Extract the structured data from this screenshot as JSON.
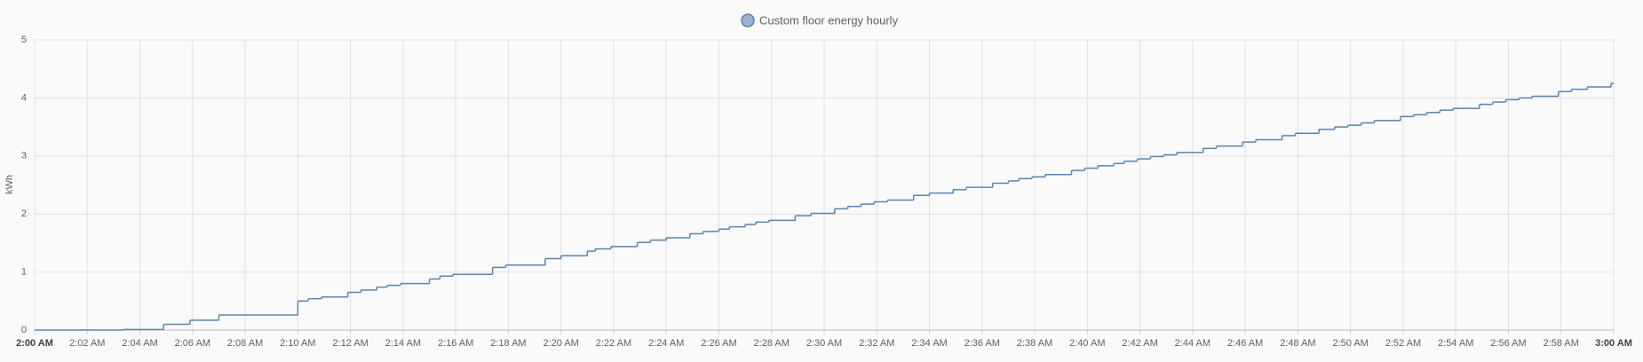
{
  "chart_data": {
    "type": "line",
    "step": "after",
    "legend_label_position": "top",
    "y_label": "kWh",
    "grid": true,
    "xlim": [
      0,
      60
    ],
    "xticks": [
      {
        "value": 0,
        "label": "2:00 AM"
      },
      {
        "value": 2,
        "label": "2:02 AM"
      },
      {
        "value": 4,
        "label": "2:04 AM"
      },
      {
        "value": 6,
        "label": "2:06 AM"
      },
      {
        "value": 8,
        "label": "2:08 AM"
      },
      {
        "value": 10,
        "label": "2:10 AM"
      },
      {
        "value": 12,
        "label": "2:12 AM"
      },
      {
        "value": 14,
        "label": "2:14 AM"
      },
      {
        "value": 16,
        "label": "2:16 AM"
      },
      {
        "value": 18,
        "label": "2:18 AM"
      },
      {
        "value": 20,
        "label": "2:20 AM"
      },
      {
        "value": 22,
        "label": "2:22 AM"
      },
      {
        "value": 24,
        "label": "2:24 AM"
      },
      {
        "value": 26,
        "label": "2:26 AM"
      },
      {
        "value": 28,
        "label": "2:28 AM"
      },
      {
        "value": 30,
        "label": "2:30 AM"
      },
      {
        "value": 32,
        "label": "2:32 AM"
      },
      {
        "value": 34,
        "label": "2:34 AM"
      },
      {
        "value": 36,
        "label": "2:36 AM"
      },
      {
        "value": 38,
        "label": "2:38 AM"
      },
      {
        "value": 40,
        "label": "2:40 AM"
      },
      {
        "value": 42,
        "label": "2:42 AM"
      },
      {
        "value": 44,
        "label": "2:44 AM"
      },
      {
        "value": 46,
        "label": "2:46 AM"
      },
      {
        "value": 48,
        "label": "2:48 AM"
      },
      {
        "value": 50,
        "label": "2:50 AM"
      },
      {
        "value": 52,
        "label": "2:52 AM"
      },
      {
        "value": 54,
        "label": "2:54 AM"
      },
      {
        "value": 56,
        "label": "2:56 AM"
      },
      {
        "value": 58,
        "label": "2:58 AM"
      },
      {
        "value": 60,
        "label": "3:00 AM"
      }
    ],
    "ylim": [
      0,
      5
    ],
    "yticks": [
      0,
      1,
      2,
      3,
      4,
      5
    ],
    "x": [
      0,
      3.4,
      4.9,
      5.9,
      7.0,
      10.0,
      10.4,
      10.9,
      11.9,
      12.4,
      13.0,
      13.4,
      13.9,
      15.0,
      15.4,
      15.9,
      17.4,
      17.9,
      19.4,
      20.0,
      21.0,
      21.3,
      21.9,
      22.9,
      23.4,
      24.0,
      24.9,
      25.4,
      26.0,
      26.4,
      27.0,
      27.4,
      27.9,
      28.9,
      29.5,
      30.4,
      30.9,
      31.4,
      31.9,
      32.4,
      33.4,
      34.0,
      34.9,
      35.4,
      36.4,
      37.0,
      37.4,
      37.9,
      38.4,
      39.4,
      39.9,
      40.4,
      41.0,
      41.4,
      41.9,
      42.4,
      42.9,
      43.4,
      44.4,
      44.9,
      45.9,
      46.4,
      47.4,
      47.9,
      48.8,
      49.4,
      49.9,
      50.4,
      50.9,
      51.9,
      52.4,
      52.9,
      53.4,
      53.9,
      54.9,
      55.4,
      55.9,
      56.4,
      56.9,
      57.9,
      58.4,
      59.0,
      59.9,
      60
    ],
    "series": [
      {
        "name": "Custom floor energy hourly",
        "color": "#5b84ad",
        "values": [
          0,
          0.01,
          0.1,
          0.17,
          0.26,
          0.5,
          0.54,
          0.57,
          0.65,
          0.69,
          0.74,
          0.77,
          0.8,
          0.88,
          0.93,
          0.96,
          1.08,
          1.12,
          1.23,
          1.28,
          1.36,
          1.4,
          1.44,
          1.51,
          1.55,
          1.59,
          1.66,
          1.7,
          1.74,
          1.78,
          1.82,
          1.86,
          1.89,
          1.97,
          2.01,
          2.09,
          2.13,
          2.17,
          2.21,
          2.24,
          2.32,
          2.36,
          2.42,
          2.46,
          2.53,
          2.57,
          2.61,
          2.64,
          2.68,
          2.75,
          2.79,
          2.83,
          2.87,
          2.91,
          2.95,
          2.99,
          3.02,
          3.06,
          3.13,
          3.17,
          3.24,
          3.28,
          3.35,
          3.39,
          3.46,
          3.5,
          3.53,
          3.57,
          3.61,
          3.68,
          3.71,
          3.75,
          3.79,
          3.82,
          3.89,
          3.93,
          3.97,
          4.0,
          4.03,
          4.11,
          4.15,
          4.19,
          4.25,
          4.25
        ]
      }
    ]
  }
}
